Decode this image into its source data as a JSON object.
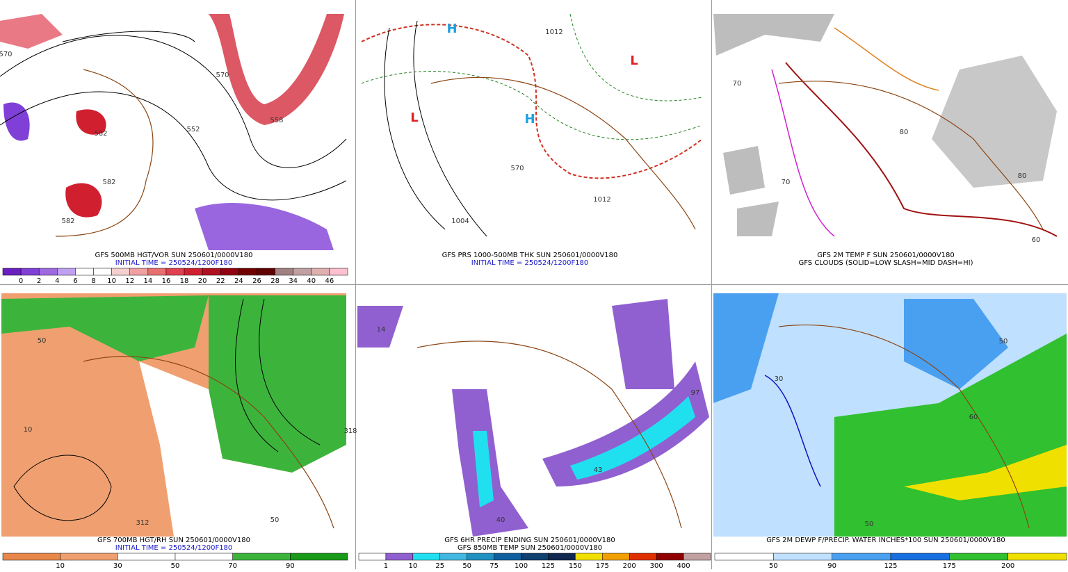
{
  "panels": [
    {
      "captions": [
        "GFS 500MB HGT/VOR SUN 250601/0000V180",
        "INITIAL TIME = 250524/1200F180"
      ],
      "colorbar": {
        "labels": [
          "0",
          "2",
          "4",
          "6",
          "8",
          "10",
          "12",
          "14",
          "16",
          "18",
          "20",
          "22",
          "24",
          "26",
          "28",
          "34",
          "40",
          "46"
        ],
        "colors": [
          "#6a1fc0",
          "#8040d8",
          "#9f6ae0",
          "#c0a0f0",
          "#ffffff",
          "#ffffff",
          "#f5d0d0",
          "#f0a0a0",
          "#e87070",
          "#e04050",
          "#d02030",
          "#b01020",
          "#900010",
          "#700000",
          "#600000",
          "#a08080",
          "#c0a0a0",
          "#e0b0b0",
          "#ffc0d0"
        ]
      },
      "map_labels": [
        "570",
        "582",
        "582",
        "582",
        "570",
        "552",
        "558"
      ]
    },
    {
      "captions": [
        "GFS PRS 1000-500MB THK SUN 250601/0000V180",
        "INITIAL TIME = 250524/1200F180"
      ],
      "map_labels": [
        "H",
        "L",
        "L",
        "H",
        "1012",
        "570",
        "1012",
        "1004"
      ]
    },
    {
      "captions": [
        "GFS 2M TEMP F SUN 250601/0000V180",
        "GFS CLOUDS (SOLID=LOW SLASH=MID DASH=HI)"
      ],
      "map_labels": [
        "70",
        "80",
        "70",
        "80",
        "60"
      ]
    },
    {
      "captions": [
        "GFS 700MB HGT/RH SUN 250601/0000V180",
        "INITIAL TIME = 250524/1200F180"
      ],
      "colorbar": {
        "labels": [
          "10",
          "30",
          "50",
          "70",
          "90"
        ],
        "colors": [
          "#e8874a",
          "#f0a070",
          "#ffffff",
          "#ffffff",
          "#3cb43c",
          "#1a9a1a"
        ]
      },
      "map_labels": [
        "50",
        "10",
        "312",
        "318",
        "50"
      ]
    },
    {
      "captions": [
        "GFS 6HR PRECIP ENDING SUN 250601/0000V180",
        "GFS 850MB TEMP SUN 250601/0000V180"
      ],
      "colorbar": {
        "labels": [
          "1",
          "10",
          "25",
          "50",
          "75",
          "100",
          "125",
          "150",
          "175",
          "200",
          "300",
          "400"
        ],
        "colors": [
          "#ffffff",
          "#9060d0",
          "#20e0f0",
          "#40b8e0",
          "#2090c0",
          "#1060a0",
          "#104070",
          "#102850",
          "#f0e000",
          "#f0a000",
          "#e03000",
          "#900000",
          "#c0a0a0"
        ]
      },
      "map_labels": [
        "97",
        "43",
        "40",
        "14"
      ]
    },
    {
      "captions": [
        "GFS 2M DEWP F/PRECIP. WATER INCHES*100 SUN 250601/0000V180"
      ],
      "colorbar": {
        "labels": [
          "50",
          "90",
          "125",
          "175",
          "200"
        ],
        "colors": [
          "#ffffff",
          "#c0e0ff",
          "#4aa0f0",
          "#1870e0",
          "#30c030",
          "#f0e000"
        ]
      },
      "map_labels": [
        "50",
        "30",
        "50",
        "60"
      ]
    }
  ]
}
